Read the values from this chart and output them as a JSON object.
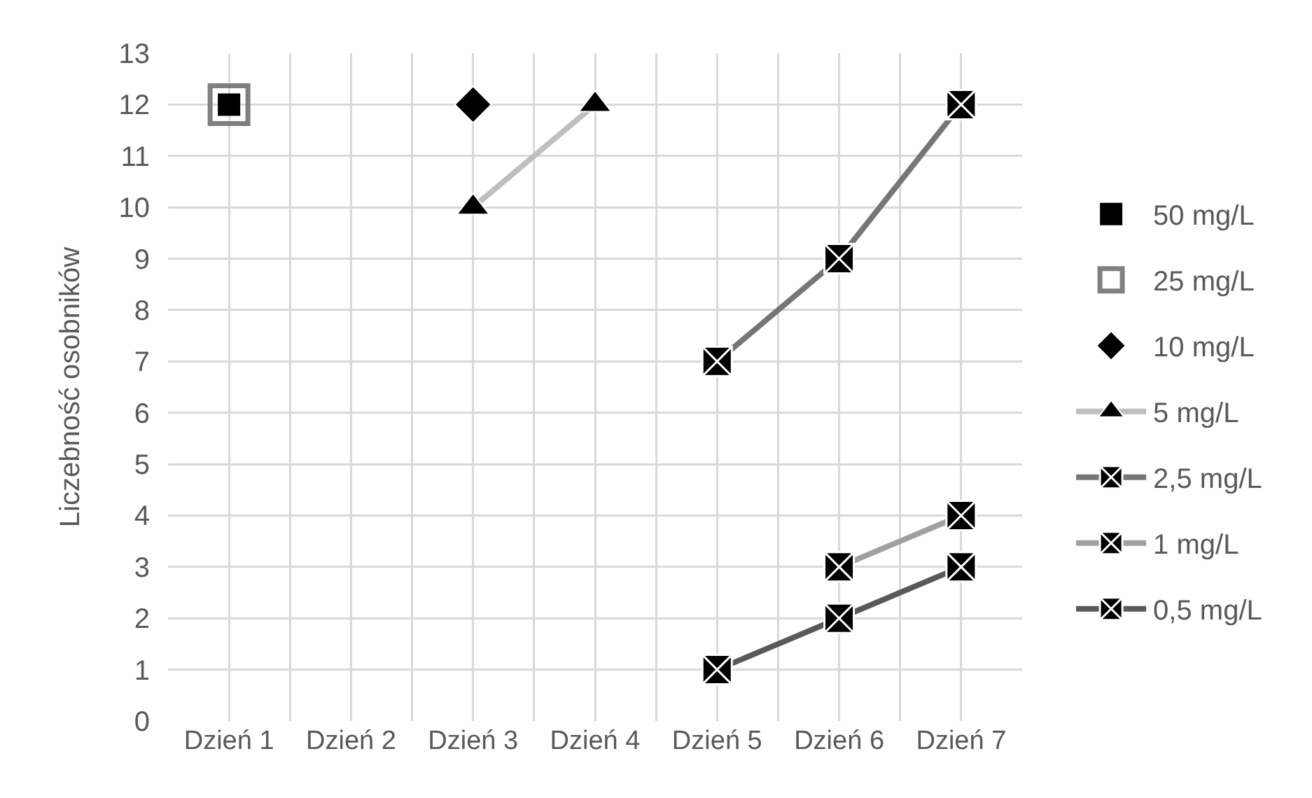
{
  "chart_data": {
    "type": "line",
    "ylabel": "Liczebność osobników",
    "categories": [
      "Dzień 1",
      "Dzień 2",
      "Dzień 3",
      "Dzień 4",
      "Dzień 5",
      "Dzień 6",
      "Dzień 7"
    ],
    "ylim": [
      0,
      13
    ],
    "yticks": [
      0,
      1,
      2,
      3,
      4,
      5,
      6,
      7,
      8,
      9,
      10,
      11,
      12,
      13
    ],
    "grid": true,
    "legend": "right",
    "series": [
      {
        "name": "50 mg/L",
        "type": "scatter",
        "marker": "square",
        "color": "#000000",
        "values": [
          12,
          null,
          null,
          null,
          null,
          null,
          null
        ]
      },
      {
        "name": "25 mg/L",
        "type": "scatter",
        "marker": "square-open",
        "color": "#808080",
        "values": [
          12,
          null,
          null,
          null,
          null,
          null,
          null
        ]
      },
      {
        "name": "10 mg/L",
        "type": "scatter",
        "marker": "diamond",
        "color": "#000000",
        "values": [
          null,
          null,
          12,
          null,
          null,
          null,
          null
        ]
      },
      {
        "name": "5 mg/L",
        "marker": "triangle",
        "color": "#bfbfbf",
        "colors": [
          null,
          null,
          "#000000",
          "#000000",
          null,
          null,
          null
        ],
        "values": [
          null,
          null,
          10,
          12,
          null,
          null,
          null
        ]
      },
      {
        "name": "2,5 mg/L",
        "marker": "cross",
        "color": "#767676",
        "colors": [
          null,
          null,
          null,
          null,
          "#000000",
          "#000000",
          "#000000"
        ],
        "values": [
          null,
          null,
          null,
          null,
          7,
          9,
          12
        ]
      },
      {
        "name": "1 mg/L",
        "marker": "cross",
        "color": "#a0a0a0",
        "colors": [
          null,
          null,
          null,
          null,
          null,
          "#000000",
          "#000000"
        ],
        "values": [
          null,
          null,
          null,
          null,
          null,
          3,
          4
        ]
      },
      {
        "name": "0,5 mg/L",
        "marker": "cross",
        "color": "#595959",
        "colors": [
          null,
          null,
          null,
          null,
          "#000000",
          "#000000",
          "#000000"
        ],
        "values": [
          null,
          null,
          null,
          null,
          1,
          2,
          3
        ]
      }
    ]
  }
}
